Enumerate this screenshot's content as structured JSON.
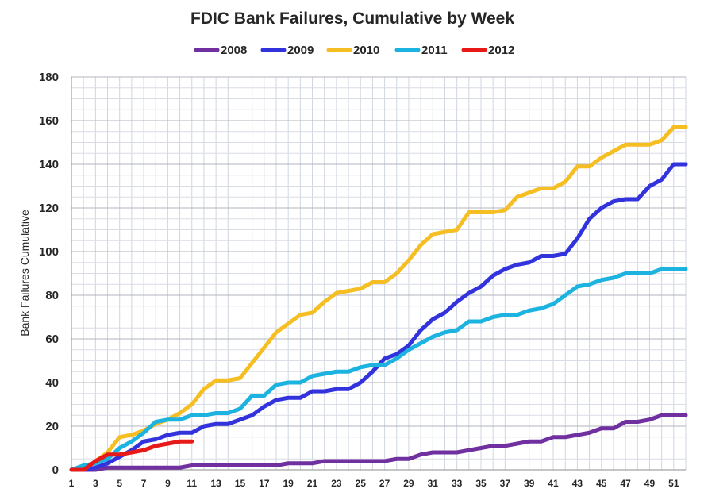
{
  "chart_data": {
    "type": "line",
    "title": "FDIC Bank Failures, Cumulative by Week",
    "xlabel": "",
    "ylabel": "Bank Failures Cumulative",
    "xlim": [
      1,
      52
    ],
    "ylim": [
      0,
      180
    ],
    "yticks": [
      0,
      20,
      40,
      60,
      80,
      100,
      120,
      140,
      160,
      180
    ],
    "xticks": [
      1,
      3,
      5,
      7,
      9,
      11,
      13,
      15,
      17,
      19,
      21,
      23,
      25,
      27,
      29,
      31,
      33,
      35,
      37,
      39,
      41,
      43,
      45,
      47,
      49,
      51
    ],
    "grid": true,
    "legend_position": "top",
    "series": [
      {
        "name": "2008",
        "color": "#7030A0",
        "values": [
          0,
          0,
          0,
          1,
          1,
          1,
          1,
          1,
          1,
          1,
          2,
          2,
          2,
          2,
          2,
          2,
          2,
          2,
          3,
          3,
          3,
          4,
          4,
          4,
          4,
          4,
          4,
          5,
          5,
          7,
          8,
          8,
          8,
          9,
          10,
          11,
          11,
          12,
          13,
          13,
          15,
          15,
          16,
          17,
          19,
          19,
          22,
          22,
          23,
          25,
          25,
          25
        ]
      },
      {
        "name": "2009",
        "color": "#3333DD",
        "values": [
          0,
          0,
          1,
          3,
          6,
          9,
          13,
          14,
          16,
          17,
          17,
          20,
          21,
          21,
          23,
          25,
          29,
          32,
          33,
          33,
          36,
          36,
          37,
          37,
          40,
          45,
          51,
          53,
          57,
          64,
          69,
          72,
          77,
          81,
          84,
          89,
          92,
          94,
          95,
          98,
          98,
          99,
          106,
          115,
          120,
          123,
          124,
          124,
          130,
          133,
          140,
          140
        ]
      },
      {
        "name": "2010",
        "color": "#F5BE22",
        "values": [
          0,
          0,
          4,
          8,
          15,
          16,
          18,
          21,
          23,
          26,
          30,
          37,
          41,
          41,
          42,
          49,
          56,
          63,
          67,
          71,
          72,
          77,
          81,
          82,
          83,
          86,
          86,
          90,
          96,
          103,
          108,
          109,
          110,
          118,
          118,
          118,
          119,
          125,
          127,
          129,
          129,
          132,
          139,
          139,
          143,
          146,
          149,
          149,
          149,
          151,
          157,
          157
        ]
      },
      {
        "name": "2011",
        "color": "#1CB3E0",
        "values": [
          0,
          2,
          3,
          5,
          10,
          13,
          17,
          22,
          23,
          23,
          25,
          25,
          26,
          26,
          28,
          34,
          34,
          39,
          40,
          40,
          43,
          44,
          45,
          45,
          47,
          48,
          48,
          51,
          55,
          58,
          61,
          63,
          64,
          68,
          68,
          70,
          71,
          71,
          73,
          74,
          76,
          80,
          84,
          85,
          87,
          88,
          90,
          90,
          90,
          92,
          92,
          92
        ]
      },
      {
        "name": "2012",
        "color": "#E81919",
        "values": [
          0,
          0,
          4,
          7,
          7,
          8,
          9,
          11,
          12,
          13,
          13
        ]
      }
    ]
  }
}
